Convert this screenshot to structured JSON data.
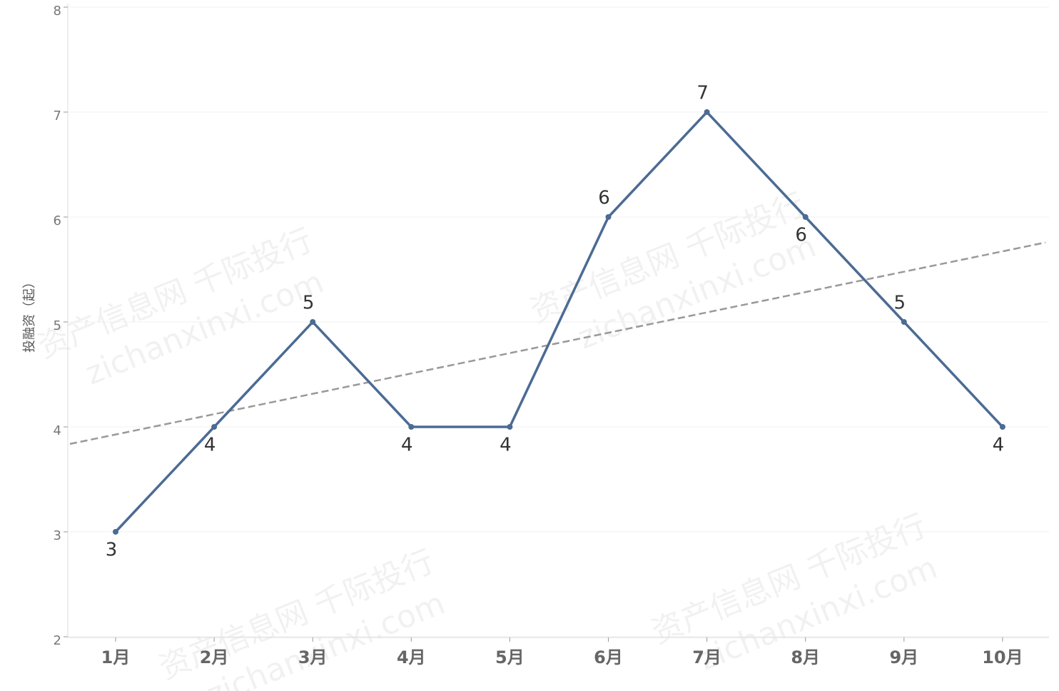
{
  "chart_data": {
    "type": "line",
    "y_axis_label": "投融资（起）",
    "categories": [
      "1月",
      "2月",
      "3月",
      "4月",
      "5月",
      "6月",
      "7月",
      "8月",
      "9月",
      "10月"
    ],
    "series": [
      {
        "name": "投融资",
        "color": "#4b6b93",
        "values": [
          3,
          4,
          5,
          4,
          4,
          6,
          7,
          6,
          5,
          4
        ]
      }
    ],
    "ylim": [
      2,
      8
    ],
    "yticks": [
      2,
      3,
      4,
      5,
      6,
      7,
      8
    ],
    "grid": true,
    "trendline": true,
    "watermark": [
      "资产信息网 千际投行",
      "zichanxinxi.com"
    ]
  }
}
